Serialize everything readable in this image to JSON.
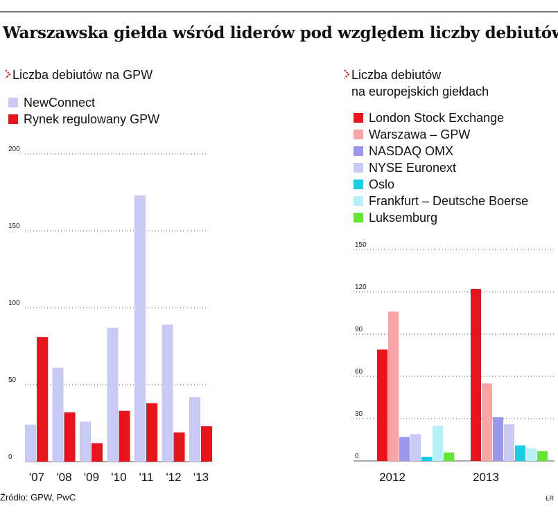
{
  "title": "Warszawska giełda wśród liderów pod względem liczby debiutów",
  "source": "Źródło: GPW, PwC",
  "credit": "ŁR",
  "colors": {
    "accent": "#e8141c",
    "newconnect": "#c8caf5",
    "london": "#e8141c",
    "warszawa": "#f9a5a5",
    "nasdaq": "#9a98ec",
    "nyse": "#c8caf5",
    "oslo": "#19cde6",
    "frankfurt": "#b7f1f8",
    "luksemburg": "#63e636"
  },
  "chart_data": [
    {
      "type": "bar",
      "subtitle": "Liczba debiutów na GPW",
      "categories": [
        "'07",
        "'08",
        "'09",
        "'10",
        "'11",
        "'12",
        "'13"
      ],
      "series": [
        {
          "name": "NewConnect",
          "values": [
            24,
            61,
            26,
            87,
            173,
            89,
            42
          ]
        },
        {
          "name": "Rynek regulowany GPW",
          "values": [
            81,
            32,
            12,
            33,
            38,
            19,
            23
          ]
        }
      ],
      "yticks": [
        0,
        50,
        100,
        150,
        200
      ],
      "ylim": [
        0,
        200
      ],
      "grid": true,
      "legend": "top-left"
    },
    {
      "type": "bar",
      "subtitle": [
        "Liczba debiutów",
        "na europejskich giełdach"
      ],
      "categories": [
        "2012",
        "2013"
      ],
      "series": [
        {
          "name": "London Stock Exchange",
          "values": [
            79,
            122
          ]
        },
        {
          "name": "Warszawa – GPW",
          "values": [
            106,
            55
          ]
        },
        {
          "name": "NASDAQ OMX",
          "values": [
            17,
            31
          ]
        },
        {
          "name": "NYSE Euronext",
          "values": [
            19,
            26
          ]
        },
        {
          "name": "Oslo",
          "values": [
            3,
            11
          ]
        },
        {
          "name": "Frankfurt – Deutsche Boerse",
          "values": [
            25,
            9
          ]
        },
        {
          "name": "Luksemburg",
          "values": [
            6,
            7
          ]
        }
      ],
      "yticks": [
        0,
        30,
        60,
        90,
        120,
        150
      ],
      "ylim": [
        0,
        150
      ],
      "grid": true,
      "legend": "top"
    }
  ]
}
